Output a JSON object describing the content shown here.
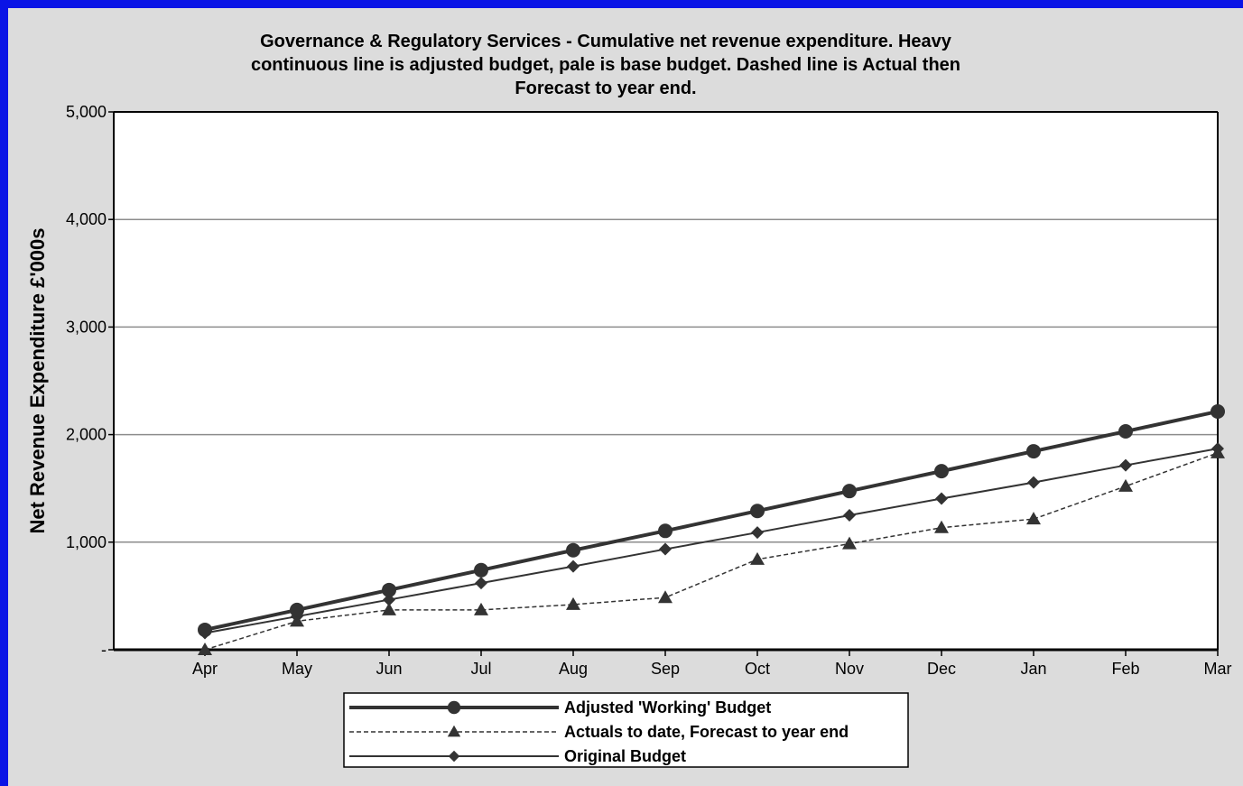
{
  "chart_data": {
    "type": "line",
    "title_lines": [
      "Governance & Regulatory Services - Cumulative net revenue expenditure. Heavy",
      "continuous line is adjusted budget, pale is base budget. Dashed line is Actual then",
      "Forecast to year end."
    ],
    "ylabel": "Net Revenue Expenditure £'000s",
    "xlabel": "",
    "categories": [
      "Apr",
      "May",
      "Jun",
      "Jul",
      "Aug",
      "Sep",
      "Oct",
      "Nov",
      "Dec",
      "Jan",
      "Feb",
      "Mar"
    ],
    "ylim": [
      0,
      5000
    ],
    "yticks": [
      0,
      1000,
      2000,
      3000,
      4000,
      5000
    ],
    "ytick_labels": [
      "-",
      "1,000",
      "2,000",
      "3,000",
      "4,000",
      "5,000"
    ],
    "grid": true,
    "legend_position": "bottom-center",
    "series": [
      {
        "name": "Adjusted 'Working' Budget",
        "values": [
          185,
          370,
          555,
          740,
          925,
          1105,
          1290,
          1475,
          1660,
          1845,
          2030,
          2215
        ],
        "line": "heavy-solid",
        "marker": "circle",
        "color": "#333333"
      },
      {
        "name": "Actuals to date, Forecast to year end",
        "values": [
          0,
          265,
          370,
          370,
          420,
          485,
          840,
          985,
          1135,
          1215,
          1520,
          1830
        ],
        "line": "dashed",
        "marker": "triangle",
        "color": "#333333"
      },
      {
        "name": "Original Budget",
        "values": [
          155,
          310,
          465,
          620,
          775,
          935,
          1090,
          1250,
          1405,
          1555,
          1715,
          1870
        ],
        "line": "thin-solid",
        "marker": "diamond",
        "color": "#333333"
      }
    ]
  }
}
